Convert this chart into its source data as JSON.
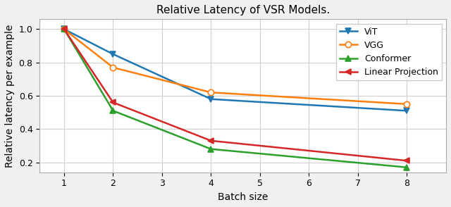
{
  "title": "Relative Latency of VSR Models.",
  "xlabel": "Batch size",
  "ylabel": "Relative latency per example",
  "x": [
    1,
    2,
    4,
    8
  ],
  "series": [
    {
      "label": "ViT",
      "color": "#1f77b4",
      "marker": "v",
      "values": [
        1.0,
        0.85,
        0.58,
        0.51
      ]
    },
    {
      "label": "VGG",
      "color": "#ff7f0e",
      "marker": "o",
      "values": [
        1.0,
        0.77,
        0.62,
        0.55
      ]
    },
    {
      "label": "Conformer",
      "color": "#2ca02c",
      "marker": "^",
      "values": [
        1.0,
        0.51,
        0.28,
        0.17
      ]
    },
    {
      "label": "Linear Projection",
      "color": "#d62728",
      "marker": "<",
      "values": [
        1.0,
        0.56,
        0.33,
        0.21
      ]
    }
  ],
  "xlim": [
    0.5,
    8.8
  ],
  "ylim": [
    0.14,
    1.06
  ],
  "xticks": [
    1,
    2,
    3,
    4,
    5,
    6,
    7,
    8
  ],
  "yticks": [
    0.2,
    0.4,
    0.6,
    0.8,
    1.0
  ],
  "grid": true,
  "legend_loc": "upper right",
  "figsize": [
    6.4,
    2.94
  ],
  "dpi": 100,
  "fig_facecolor": "#f0f0f0",
  "ax_facecolor": "#ffffff",
  "grid_color": "#d0d0d0",
  "grid_linewidth": 0.8,
  "linewidth": 1.8,
  "markersize": 6,
  "title_fontsize": 11,
  "label_fontsize": 10,
  "tick_fontsize": 9,
  "legend_fontsize": 9
}
